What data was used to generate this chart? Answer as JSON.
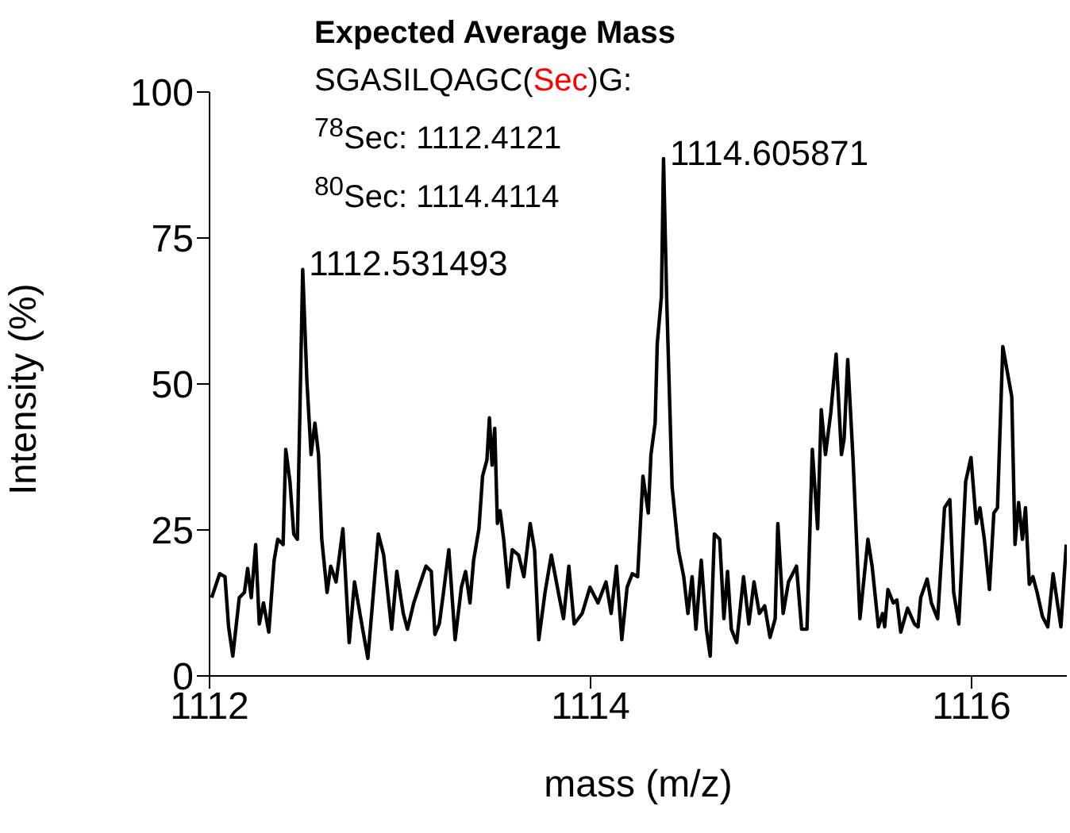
{
  "chart_data": {
    "type": "line",
    "title": "Expected Average Mass",
    "xlabel": "mass (m/z)",
    "ylabel": "Intensity (%)",
    "annotations": [
      "SGASILQAGC(Sec)G:",
      "$^{78}$Sec: 1112.4121",
      "$^{80}$Sec: 1114.4114",
      {
        "text": "1112.531493",
        "x": 1112.489,
        "y": 69.6
      },
      {
        "text": "1114.605871",
        "x": 1114.383,
        "y": 88.6
      }
    ],
    "x": [
      1112.011,
      1112.053,
      1112.081,
      1112.1,
      1112.122,
      1112.156,
      1112.183,
      1112.2,
      1112.219,
      1112.242,
      1112.261,
      1112.283,
      1112.311,
      1112.339,
      1112.358,
      1112.386,
      1112.4,
      1112.422,
      1112.442,
      1112.461,
      1112.489,
      1112.511,
      1112.533,
      1112.553,
      1112.572,
      1112.589,
      1112.617,
      1112.636,
      1112.664,
      1112.7,
      1112.733,
      1112.761,
      1112.794,
      1112.831,
      1112.886,
      1112.914,
      1112.956,
      1112.983,
      1113.017,
      1113.039,
      1113.072,
      1113.108,
      1113.136,
      1113.164,
      1113.183,
      1113.206,
      1113.228,
      1113.256,
      1113.289,
      1113.322,
      1113.344,
      1113.367,
      1113.386,
      1113.414,
      1113.433,
      1113.456,
      1113.469,
      1113.483,
      1113.497,
      1113.511,
      1113.525,
      1113.544,
      1113.567,
      1113.589,
      1113.622,
      1113.65,
      1113.683,
      1113.706,
      1113.728,
      1113.761,
      1113.794,
      1113.831,
      1113.858,
      1113.886,
      1113.914,
      1113.956,
      1113.997,
      1114.039,
      1114.081,
      1114.108,
      1114.136,
      1114.164,
      1114.192,
      1114.219,
      1114.247,
      1114.275,
      1114.303,
      1114.317,
      1114.339,
      1114.35,
      1114.372,
      1114.383,
      1114.4,
      1114.428,
      1114.461,
      1114.489,
      1114.511,
      1114.533,
      1114.553,
      1114.581,
      1114.608,
      1114.628,
      1114.65,
      1114.678,
      1114.7,
      1114.719,
      1114.739,
      1114.767,
      1114.803,
      1114.831,
      1114.858,
      1114.886,
      1114.914,
      1114.942,
      1114.969,
      1114.983,
      1115.011,
      1115.039,
      1115.081,
      1115.108,
      1115.136,
      1115.164,
      1115.192,
      1115.211,
      1115.233,
      1115.261,
      1115.289,
      1115.317,
      1115.331,
      1115.35,
      1115.378,
      1115.414,
      1115.456,
      1115.478,
      1115.511,
      1115.533,
      1115.544,
      1115.561,
      1115.589,
      1115.608,
      1115.628,
      1115.664,
      1115.7,
      1115.719,
      1115.733,
      1115.767,
      1115.789,
      1115.822,
      1115.858,
      1115.886,
      1115.906,
      1115.933,
      1115.969,
      1115.997,
      1116.025,
      1116.044,
      1116.067,
      1116.094,
      1116.117,
      1116.136,
      1116.164,
      1116.211,
      1116.228,
      1116.247,
      1116.267,
      1116.283,
      1116.303,
      1116.322,
      1116.344,
      1116.372,
      1116.4,
      1116.428,
      1116.469,
      1116.497
    ],
    "series": [
      {
        "color": "#000000",
        "values": [
          13.4,
          17.5,
          17.0,
          8.4,
          3.4,
          13.4,
          14.3,
          18.4,
          13.4,
          22.5,
          8.9,
          12.5,
          7.5,
          19.8,
          23.4,
          22.5,
          38.8,
          33.3,
          24.3,
          23.4,
          69.6,
          50.5,
          37.9,
          43.3,
          37.9,
          23.4,
          14.3,
          18.8,
          16.1,
          25.2,
          5.7,
          16.1,
          9.8,
          3.0,
          24.3,
          20.7,
          8.0,
          17.9,
          10.7,
          8.0,
          12.5,
          16.1,
          18.8,
          17.9,
          7.1,
          8.9,
          14.3,
          21.6,
          6.2,
          15.2,
          17.9,
          12.5,
          19.8,
          25.2,
          34.2,
          37.0,
          44.2,
          36.1,
          42.4,
          26.1,
          28.3,
          23.4,
          15.2,
          21.6,
          20.7,
          17.0,
          26.1,
          21.6,
          6.2,
          14.3,
          20.7,
          14.3,
          9.8,
          18.8,
          8.9,
          10.7,
          15.2,
          12.5,
          16.1,
          10.7,
          18.8,
          6.2,
          15.2,
          17.5,
          17.0,
          34.2,
          27.9,
          37.9,
          43.3,
          56.9,
          65.0,
          88.6,
          64.1,
          32.4,
          21.6,
          17.0,
          10.7,
          17.0,
          8.0,
          19.8,
          8.0,
          3.4,
          24.3,
          23.4,
          9.8,
          17.9,
          8.0,
          5.7,
          17.0,
          8.9,
          16.1,
          10.7,
          12.0,
          6.6,
          9.8,
          26.1,
          10.7,
          16.1,
          18.8,
          8.0,
          8.0,
          38.8,
          25.2,
          45.6,
          37.9,
          45.1,
          55.1,
          37.9,
          40.6,
          54.2,
          37.0,
          9.8,
          23.4,
          18.8,
          8.4,
          10.7,
          8.4,
          14.8,
          12.5,
          13.0,
          7.5,
          11.6,
          8.9,
          8.4,
          13.4,
          16.6,
          12.5,
          9.8,
          28.8,
          30.2,
          14.3,
          8.9,
          33.3,
          37.4,
          26.1,
          28.8,
          23.4,
          14.8,
          27.9,
          28.8,
          56.4,
          47.8,
          22.5,
          29.7,
          23.4,
          28.8,
          15.7,
          17.0,
          14.3,
          10.2,
          8.4,
          17.5,
          8.4,
          22.5
        ]
      }
    ],
    "xlim": [
      1112,
      1116.5
    ],
    "xticks": [
      1112,
      1114,
      1116
    ],
    "ylim": [
      0,
      100
    ],
    "yticks": [
      0,
      25,
      50,
      75,
      100
    ],
    "grid": false,
    "legend": false,
    "marker": "none",
    "line_style": "solid"
  }
}
